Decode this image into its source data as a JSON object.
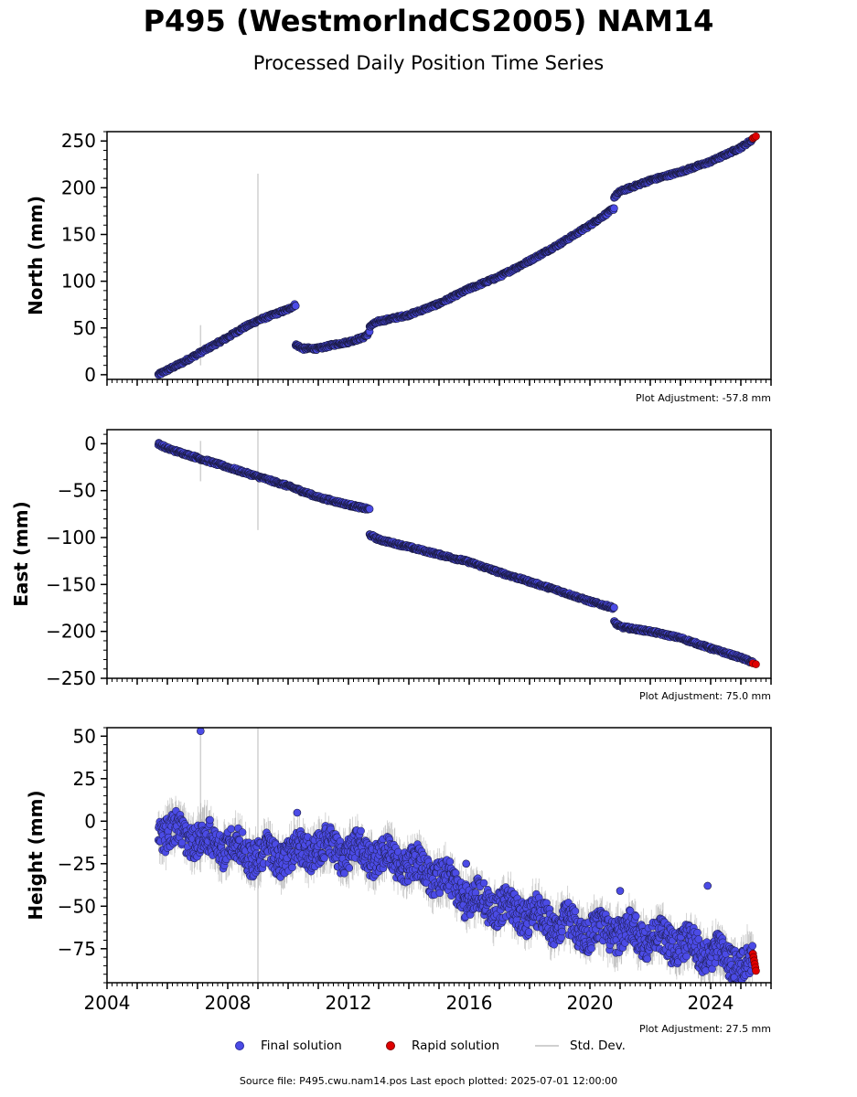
{
  "title": "P495 (WestmorlndCS2005) NAM14",
  "subtitle": "Processed Daily Position Time Series",
  "legend": {
    "final": "Final solution",
    "rapid": "Rapid solution",
    "std": "Std. Dev."
  },
  "footer": "Source file: P495.cwu.nam14.pos  Last epoch plotted: 2025-07-01 12:00:00",
  "colors": {
    "final_fill": "#4b4be6",
    "final_edge": "#1a1a40",
    "rapid_fill": "#e00000",
    "std_line": "#d0d0d0"
  },
  "chart_data": [
    {
      "type": "scatter",
      "ylabel": "North (mm)",
      "adjustment": "Plot Adjustment: -57.8 mm",
      "xlim": [
        2004,
        2026
      ],
      "ylim": [
        -5,
        260
      ],
      "yticks": [
        0,
        50,
        100,
        150,
        200,
        250
      ],
      "ytick_labels": [
        "0",
        "50",
        "100",
        "150",
        "200",
        "250"
      ],
      "xtick_labels_shown": false,
      "series": [
        {
          "name": "Final solution",
          "segments": [
            {
              "x": [
                2005.7,
                2006.0,
                2006.5,
                2007.0,
                2007.5,
                2008.0,
                2008.5,
                2009.0,
                2009.5,
                2010.0,
                2010.25
              ],
              "y": [
                0,
                5,
                13,
                22,
                31,
                40,
                50,
                58,
                64,
                70,
                75
              ]
            },
            {
              "x": [
                2010.25,
                2010.5,
                2011.0,
                2011.5,
                2012.0,
                2012.5,
                2012.7
              ],
              "y": [
                32,
                28,
                28,
                32,
                35,
                40,
                45
              ]
            },
            {
              "x": [
                2012.7,
                2013.0,
                2014.0,
                2015.0,
                2016.0,
                2017.0,
                2018.0,
                2019.0,
                2020.0,
                2020.8
              ],
              "y": [
                52,
                57,
                64,
                76,
                92,
                105,
                122,
                140,
                160,
                178
              ]
            },
            {
              "x": [
                2020.8,
                2021.0,
                2022.0,
                2023.0,
                2024.0,
                2025.0,
                2025.4
              ],
              "y": [
                190,
                196,
                208,
                217,
                228,
                243,
                252
              ]
            }
          ]
        },
        {
          "name": "Rapid solution",
          "x": [
            2025.4,
            2025.45,
            2025.5
          ],
          "y": [
            253,
            254,
            255
          ]
        }
      ],
      "std_spikes": [
        {
          "x": 2007.1,
          "y_low": 10,
          "y_high": 53
        },
        {
          "x": 2009.0,
          "y_low": -5,
          "y_high": 215
        }
      ]
    },
    {
      "type": "scatter",
      "ylabel": "East (mm)",
      "adjustment": "Plot Adjustment: 75.0 mm",
      "xlim": [
        2004,
        2026
      ],
      "ylim": [
        -250,
        15
      ],
      "yticks": [
        0,
        -50,
        -100,
        -150,
        -200,
        -250
      ],
      "ytick_labels": [
        "0",
        "−50",
        "−100",
        "−150",
        "−200",
        "−250"
      ],
      "xtick_labels_shown": false,
      "series": [
        {
          "name": "Final solution",
          "segments": [
            {
              "x": [
                2005.7,
                2006.0,
                2007.0,
                2008.0,
                2009.0,
                2010.0,
                2011.0,
                2012.0,
                2012.7
              ],
              "y": [
                0,
                -5,
                -15,
                -25,
                -35,
                -45,
                -57,
                -65,
                -70
              ]
            },
            {
              "x": [
                2012.7,
                2013.0,
                2014.0,
                2015.0,
                2016.0,
                2017.0,
                2018.0,
                2019.0,
                2020.0,
                2020.8
              ],
              "y": [
                -97,
                -102,
                -110,
                -118,
                -126,
                -137,
                -147,
                -157,
                -168,
                -175
              ]
            },
            {
              "x": [
                2020.8,
                2021.0,
                2022.0,
                2023.0,
                2024.0,
                2025.0,
                2025.4
              ],
              "y": [
                -190,
                -195,
                -200,
                -207,
                -218,
                -228,
                -233
              ]
            }
          ]
        },
        {
          "name": "Rapid solution",
          "x": [
            2025.4,
            2025.5
          ],
          "y": [
            -234,
            -235
          ]
        }
      ],
      "std_spikes": [
        {
          "x": 2007.1,
          "y_low": -40,
          "y_high": 3
        },
        {
          "x": 2009.0,
          "y_low": -92,
          "y_high": 15
        }
      ]
    },
    {
      "type": "scatter",
      "ylabel": "Height (mm)",
      "adjustment": "Plot Adjustment: 27.5 mm",
      "xlim": [
        2004,
        2026
      ],
      "ylim": [
        -95,
        55
      ],
      "yticks": [
        50,
        25,
        0,
        -25,
        -50,
        -75
      ],
      "ytick_labels": [
        "50",
        "25",
        "0",
        "−25",
        "−50",
        "−75"
      ],
      "xticks": [
        2004,
        2008,
        2012,
        2016,
        2020,
        2024
      ],
      "xtick_labels": [
        "2004",
        "2008",
        "2012",
        "2016",
        "2020",
        "2024"
      ],
      "xtick_labels_shown": true,
      "series": [
        {
          "name": "Final solution",
          "trend": {
            "x": [
              2005.7,
              2007.0,
              2008.0,
              2009.0,
              2010.0,
              2011.0,
              2012.0,
              2013.0,
              2014.0,
              2015.0,
              2016.0,
              2017.0,
              2018.0,
              2019.0,
              2020.0,
              2021.0,
              2022.0,
              2023.0,
              2024.0,
              2025.4
            ],
            "y": [
              -5,
              -10,
              -15,
              -20,
              -20,
              -15,
              -18,
              -20,
              -25,
              -32,
              -45,
              -50,
              -55,
              -60,
              -65,
              -65,
              -68,
              -72,
              -78,
              -85
            ]
          },
          "scatter_amplitude": 10,
          "outliers": [
            {
              "x": 2007.1,
              "y": 53
            },
            {
              "x": 2010.3,
              "y": 5
            },
            {
              "x": 2015.9,
              "y": -25
            },
            {
              "x": 2021.0,
              "y": -41
            },
            {
              "x": 2023.9,
              "y": -38
            }
          ]
        },
        {
          "name": "Rapid solution",
          "x": [
            2025.4,
            2025.42,
            2025.44,
            2025.46,
            2025.48,
            2025.5
          ],
          "y": [
            -78,
            -80,
            -82,
            -84,
            -86,
            -88
          ]
        }
      ],
      "std_spikes": [
        {
          "x": 2007.1,
          "y_low": -30,
          "y_high": 55
        },
        {
          "x": 2009.0,
          "y_low": -95,
          "y_high": 55
        }
      ]
    }
  ]
}
